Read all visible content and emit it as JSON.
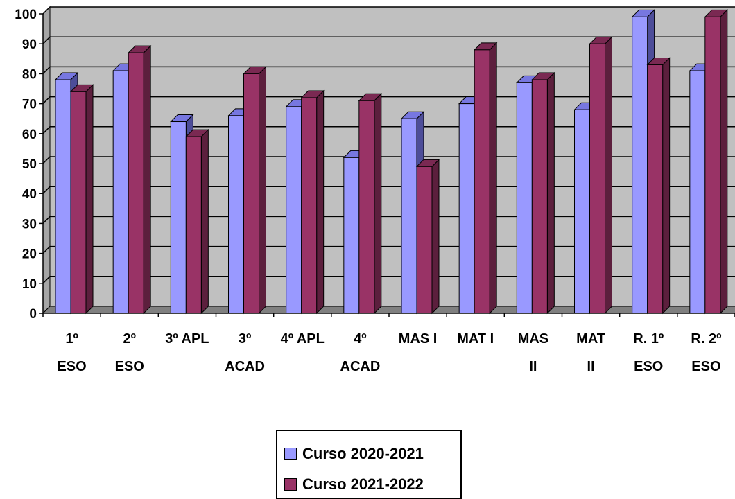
{
  "chart_data": {
    "type": "bar",
    "categories": [
      [
        "1º",
        "ESO"
      ],
      [
        "2º",
        "ESO"
      ],
      [
        "3º APL"
      ],
      [
        "3º",
        "ACAD"
      ],
      [
        "4º APL"
      ],
      [
        "4º",
        "ACAD"
      ],
      [
        "MAS I"
      ],
      [
        "MAT I"
      ],
      [
        "MAS",
        "II"
      ],
      [
        "MAT",
        "II"
      ],
      [
        "R. 1º",
        "ESO"
      ],
      [
        "R. 2º",
        "ESO"
      ]
    ],
    "series": [
      {
        "name": "Curso 2020-2021",
        "values": [
          78,
          81,
          64,
          66,
          69,
          52,
          65,
          70,
          77,
          68,
          99,
          81
        ],
        "color": "#9999ff",
        "top_color": "#7777e0",
        "side_color": "#4d4d99"
      },
      {
        "name": "Curso 2021-2022",
        "values": [
          74,
          87,
          59,
          80,
          72,
          71,
          49,
          88,
          78,
          90,
          83,
          99
        ],
        "color": "#993366",
        "top_color": "#7a2952",
        "side_color": "#5c1f3d"
      }
    ],
    "yticks": [
      0,
      10,
      20,
      30,
      40,
      50,
      60,
      70,
      80,
      90,
      100
    ],
    "ylim": [
      0,
      100
    ],
    "grid": true,
    "wall_color": "#c0c0c0",
    "legend_position": "bottom-center",
    "title": "",
    "xlabel": "",
    "ylabel": ""
  }
}
